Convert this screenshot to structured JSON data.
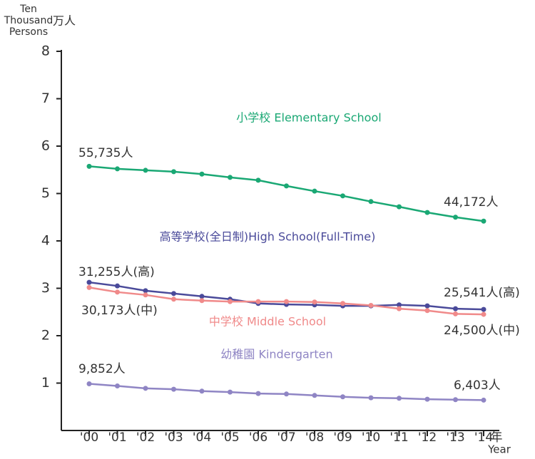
{
  "chart_data": {
    "type": "line",
    "ylabel_lines": [
      "Ten",
      "Thousand",
      "Persons"
    ],
    "ylabel_unit": "万人",
    "xlabel_unit": "年",
    "xlabel": "Year",
    "categories": [
      "'00",
      "'01",
      "'02",
      "'03",
      "'04",
      "'05",
      "'06",
      "'07",
      "'08",
      "'09",
      "'10",
      "'11",
      "'12",
      "'13",
      "'14"
    ],
    "ylim": [
      0,
      8
    ],
    "yticks": [
      1,
      2,
      3,
      4,
      5,
      6,
      7,
      8
    ],
    "grid": false,
    "series": [
      {
        "name": "小学校 Elementary School",
        "color": "#1aa874",
        "values": [
          5.5735,
          5.52,
          5.49,
          5.46,
          5.41,
          5.34,
          5.28,
          5.16,
          5.05,
          4.95,
          4.83,
          4.72,
          4.6,
          4.5,
          4.4172
        ],
        "value_labels": [
          "55,735人",
          null,
          null,
          null,
          null,
          null,
          null,
          null,
          null,
          null,
          null,
          null,
          null,
          null,
          "44,172人"
        ]
      },
      {
        "name": "高等学校(全日制)High School(Full-Time)",
        "color": "#4a4a9a",
        "values": [
          3.1255,
          3.05,
          2.95,
          2.89,
          2.83,
          2.77,
          2.68,
          2.66,
          2.65,
          2.63,
          2.63,
          2.65,
          2.63,
          2.57,
          2.5541
        ],
        "value_labels": [
          "31,255人(高)",
          null,
          null,
          null,
          null,
          null,
          null,
          null,
          null,
          null,
          null,
          null,
          null,
          null,
          "25,541人(高)"
        ]
      },
      {
        "name": "中学校 Middle School",
        "color": "#f08a8a",
        "values": [
          3.0173,
          2.92,
          2.86,
          2.77,
          2.74,
          2.72,
          2.72,
          2.72,
          2.71,
          2.68,
          2.64,
          2.57,
          2.53,
          2.46,
          2.45
        ],
        "value_labels": [
          "30,173人(中)",
          null,
          null,
          null,
          null,
          null,
          null,
          null,
          null,
          null,
          null,
          null,
          null,
          null,
          "24,500人(中)"
        ]
      },
      {
        "name": "幼稚園 Kindergarten",
        "color": "#8f85c4",
        "values": [
          0.9852,
          0.94,
          0.89,
          0.87,
          0.83,
          0.81,
          0.78,
          0.77,
          0.74,
          0.71,
          0.69,
          0.68,
          0.66,
          0.65,
          0.6403
        ],
        "value_labels": [
          "9,852人",
          null,
          null,
          null,
          null,
          null,
          null,
          null,
          null,
          null,
          null,
          null,
          null,
          null,
          "6,403人"
        ]
      }
    ]
  }
}
